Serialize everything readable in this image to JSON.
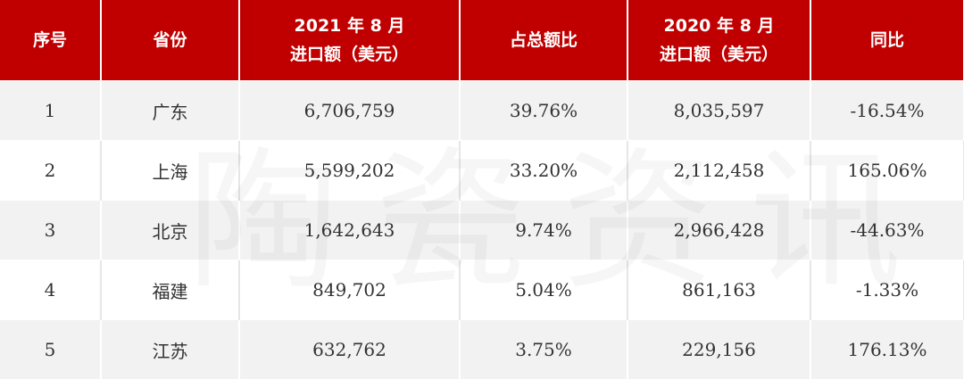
{
  "table": {
    "header": [
      [
        "序号"
      ],
      [
        "省份"
      ],
      [
        "2021 年 8 月",
        "进口额（美元）"
      ],
      [
        "占总额比"
      ],
      [
        "2020 年 8 月",
        "进口额（美元）"
      ],
      [
        "同比"
      ]
    ],
    "rows": [
      [
        "1",
        "广东",
        "6,706,759",
        "39.76%",
        "8,035,597",
        "-16.54%"
      ],
      [
        "2",
        "上海",
        "5,599,202",
        "33.20%",
        "2,112,458",
        "165.06%"
      ],
      [
        "3",
        "北京",
        "1,642,643",
        "9.74%",
        "2,966,428",
        "-44.63%"
      ],
      [
        "4",
        "福建",
        "849,702",
        "5.04%",
        "861,163",
        "-1.33%"
      ],
      [
        "5",
        "江苏",
        "632,762",
        "3.75%",
        "229,156",
        "176.13%"
      ]
    ]
  },
  "watermark": "陶瓷资讯"
}
